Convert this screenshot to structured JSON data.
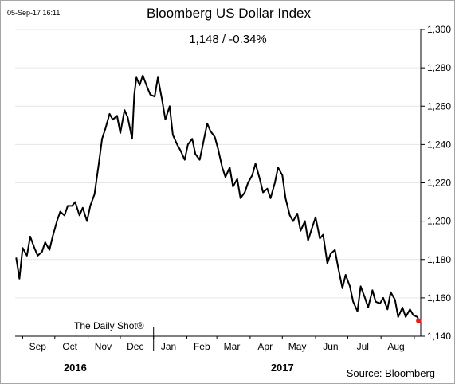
{
  "chart_data": {
    "type": "line",
    "title": "Bloomberg US Dollar Index",
    "subtitle": "1,148  /  -0.34%",
    "timestamp": "05-Sep-17 16:11",
    "credit": "The Daily Shot®",
    "source": "Source: Bloomberg",
    "xlabel": "",
    "ylabel": "",
    "ylim": [
      1140,
      1300
    ],
    "yticks": [
      1140,
      1160,
      1180,
      1200,
      1220,
      1240,
      1260,
      1280,
      1300
    ],
    "ytick_labels": [
      "1,140",
      "1,160",
      "1,180",
      "1,200",
      "1,220",
      "1,240",
      "1,260",
      "1,280",
      "1,300"
    ],
    "x_range": [
      "2016-08-25",
      "2017-09-07"
    ],
    "months": [
      {
        "label": "Sep",
        "date": "2016-09-15"
      },
      {
        "label": "Oct",
        "date": "2016-10-15"
      },
      {
        "label": "Nov",
        "date": "2016-11-15"
      },
      {
        "label": "Dec",
        "date": "2016-12-15"
      },
      {
        "label": "Jan",
        "date": "2017-01-15"
      },
      {
        "label": "Feb",
        "date": "2017-02-15"
      },
      {
        "label": "Mar",
        "date": "2017-03-15"
      },
      {
        "label": "Apr",
        "date": "2017-04-15"
      },
      {
        "label": "May",
        "date": "2017-05-15"
      },
      {
        "label": "Jun",
        "date": "2017-06-15"
      },
      {
        "label": "Jul",
        "date": "2017-07-15"
      },
      {
        "label": "Aug",
        "date": "2017-08-15"
      }
    ],
    "years": [
      {
        "label": "2016",
        "date": "2016-10-20"
      },
      {
        "label": "2017",
        "date": "2017-05-01"
      }
    ],
    "year_divider": "2017-01-01",
    "series": [
      {
        "color": "#000000",
        "x": [
          "2016-08-26",
          "2016-08-29",
          "2016-09-01",
          "2016-09-05",
          "2016-09-08",
          "2016-09-12",
          "2016-09-15",
          "2016-09-19",
          "2016-09-22",
          "2016-09-26",
          "2016-09-29",
          "2016-10-03",
          "2016-10-06",
          "2016-10-10",
          "2016-10-13",
          "2016-10-17",
          "2016-10-20",
          "2016-10-24",
          "2016-10-27",
          "2016-10-31",
          "2016-11-03",
          "2016-11-07",
          "2016-11-09",
          "2016-11-11",
          "2016-11-14",
          "2016-11-17",
          "2016-11-21",
          "2016-11-24",
          "2016-11-28",
          "2016-12-01",
          "2016-12-05",
          "2016-12-08",
          "2016-12-12",
          "2016-12-14",
          "2016-12-16",
          "2016-12-19",
          "2016-12-22",
          "2016-12-26",
          "2016-12-29",
          "2017-01-02",
          "2017-01-05",
          "2017-01-09",
          "2017-01-12",
          "2017-01-16",
          "2017-01-19",
          "2017-01-23",
          "2017-01-26",
          "2017-01-30",
          "2017-02-02",
          "2017-02-06",
          "2017-02-09",
          "2017-02-13",
          "2017-02-16",
          "2017-02-20",
          "2017-02-23",
          "2017-02-27",
          "2017-03-02",
          "2017-03-06",
          "2017-03-09",
          "2017-03-13",
          "2017-03-16",
          "2017-03-20",
          "2017-03-23",
          "2017-03-27",
          "2017-03-30",
          "2017-04-03",
          "2017-04-06",
          "2017-04-10",
          "2017-04-13",
          "2017-04-17",
          "2017-04-20",
          "2017-04-24",
          "2017-04-27",
          "2017-05-01",
          "2017-05-04",
          "2017-05-08",
          "2017-05-11",
          "2017-05-15",
          "2017-05-18",
          "2017-05-22",
          "2017-05-25",
          "2017-05-29",
          "2017-06-01",
          "2017-06-05",
          "2017-06-08",
          "2017-06-12",
          "2017-06-15",
          "2017-06-19",
          "2017-06-22",
          "2017-06-26",
          "2017-06-29",
          "2017-07-03",
          "2017-07-06",
          "2017-07-10",
          "2017-07-13",
          "2017-07-17",
          "2017-07-20",
          "2017-07-24",
          "2017-07-27",
          "2017-07-31",
          "2017-08-03",
          "2017-08-07",
          "2017-08-10",
          "2017-08-14",
          "2017-08-17",
          "2017-08-21",
          "2017-08-24",
          "2017-08-28",
          "2017-08-31",
          "2017-09-04",
          "2017-09-05"
        ],
        "y": [
          1181,
          1170,
          1186,
          1182,
          1192,
          1186,
          1182,
          1184,
          1189,
          1185,
          1192,
          1200,
          1205,
          1203,
          1208,
          1208,
          1210,
          1203,
          1207,
          1200,
          1208,
          1214,
          1222,
          1230,
          1243,
          1248,
          1256,
          1253,
          1255,
          1246,
          1258,
          1254,
          1243,
          1266,
          1275,
          1271,
          1276,
          1270,
          1266,
          1265,
          1275,
          1263,
          1253,
          1260,
          1245,
          1240,
          1237,
          1232,
          1240,
          1243,
          1235,
          1232,
          1240,
          1251,
          1247,
          1244,
          1238,
          1228,
          1223,
          1228,
          1218,
          1222,
          1212,
          1215,
          1220,
          1224,
          1230,
          1222,
          1215,
          1217,
          1212,
          1220,
          1228,
          1224,
          1212,
          1203,
          1200,
          1204,
          1195,
          1200,
          1190,
          1197,
          1202,
          1191,
          1193,
          1178,
          1183,
          1185,
          1176,
          1165,
          1172,
          1166,
          1158,
          1153,
          1166,
          1160,
          1155,
          1164,
          1158,
          1157,
          1160,
          1154,
          1163,
          1159,
          1150,
          1155,
          1150,
          1154,
          1151,
          1150,
          1148
        ]
      }
    ],
    "last_point": {
      "date": "2017-09-05",
      "value": 1148,
      "color": "#e8201a"
    }
  }
}
